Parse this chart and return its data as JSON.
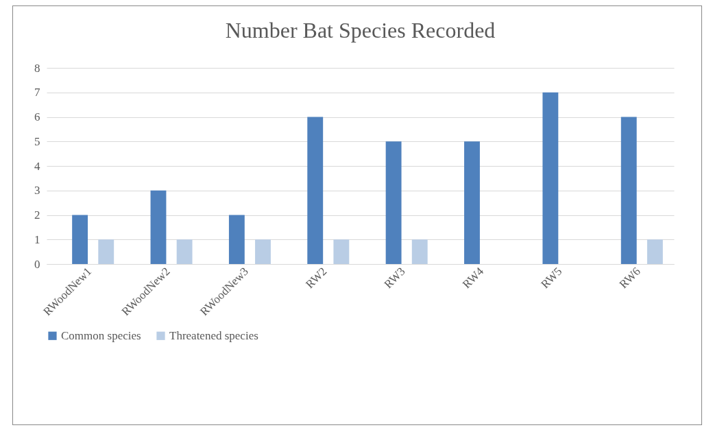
{
  "chart_data": {
    "type": "bar",
    "title": "Number Bat Species Recorded",
    "categories": [
      "RWoodNew1",
      "RWoodNew2",
      "RWoodNew3",
      "RW2",
      "RW3",
      "RW4",
      "RW5",
      "RW6"
    ],
    "series": [
      {
        "name": "Common species",
        "color": "#4f81bd",
        "values": [
          2,
          3,
          2,
          6,
          5,
          5,
          7,
          6
        ]
      },
      {
        "name": "Threatened species",
        "color": "#b9cde5",
        "values": [
          1,
          1,
          1,
          1,
          1,
          0,
          0,
          1
        ]
      }
    ],
    "ylim": [
      0,
      8
    ],
    "yticks": [
      0,
      1,
      2,
      3,
      4,
      5,
      6,
      7,
      8
    ],
    "grid": "y",
    "legend": "bottom"
  }
}
